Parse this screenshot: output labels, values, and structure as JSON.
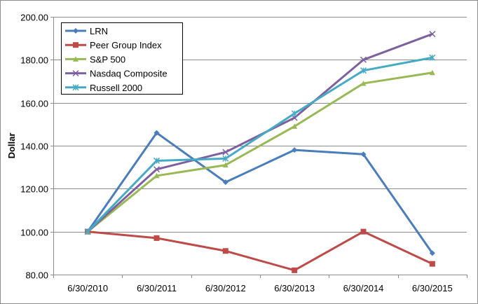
{
  "chart_data": {
    "type": "line",
    "title": "",
    "xlabel": "",
    "ylabel": "Dollar",
    "ylim": [
      80,
      200
    ],
    "y_ticks": [
      "80.00",
      "100.00",
      "120.00",
      "140.00",
      "160.00",
      "180.00",
      "200.00"
    ],
    "y_tick_values": [
      80,
      100,
      120,
      140,
      160,
      180,
      200
    ],
    "grid": "horizontal",
    "legend_position": "top-left",
    "categories": [
      "6/30/2010",
      "6/30/2011",
      "6/30/2012",
      "6/30/2013",
      "6/30/2014",
      "6/30/2015"
    ],
    "series": [
      {
        "name": "LRN",
        "color": "#4A7EBB",
        "marker": "diamond",
        "values": [
          100,
          146,
          123,
          138,
          136,
          90
        ]
      },
      {
        "name": "Peer Group Index",
        "color": "#BE4B48",
        "marker": "square",
        "values": [
          100,
          97,
          91,
          82,
          100,
          85
        ]
      },
      {
        "name": "S&P 500",
        "color": "#98B954",
        "marker": "triangle",
        "values": [
          100,
          126,
          131,
          149,
          169,
          174
        ]
      },
      {
        "name": "Nasdaq Composite",
        "color": "#7D60A0",
        "marker": "x",
        "values": [
          100,
          129,
          137,
          153,
          180,
          192
        ]
      },
      {
        "name": "Russell 2000",
        "color": "#46AAC5",
        "marker": "star",
        "values": [
          100,
          133,
          134,
          155,
          175,
          181
        ]
      }
    ]
  }
}
